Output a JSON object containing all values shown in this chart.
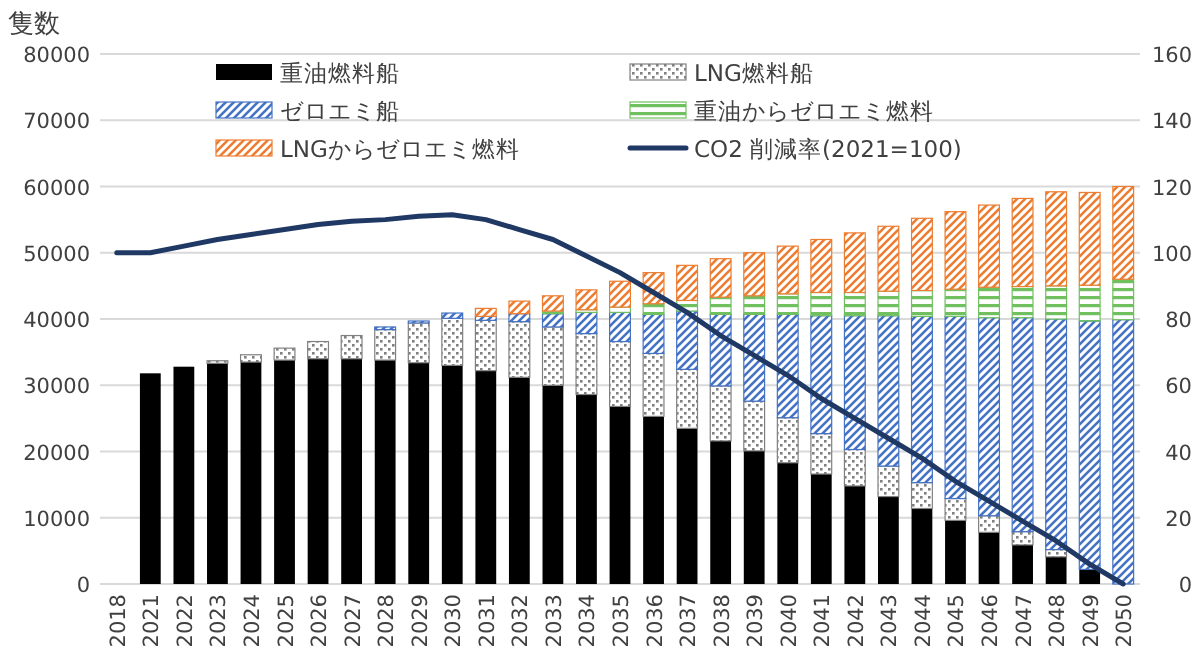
{
  "chart_data": {
    "type": "bar",
    "stacked": true,
    "ylabel": "隻数",
    "categories": [
      "2018",
      "2021",
      "2022",
      "2023",
      "2024",
      "2025",
      "2026",
      "2027",
      "2028",
      "2029",
      "2030",
      "2031",
      "2032",
      "2033",
      "2034",
      "2035",
      "2036",
      "2037",
      "2038",
      "2039",
      "2040",
      "2041",
      "2042",
      "2043",
      "2044",
      "2045",
      "2046",
      "2047",
      "2048",
      "2049",
      "2050"
    ],
    "series": [
      {
        "name": "重油燃料船",
        "color": "#000000",
        "values": [
          null,
          31800,
          32800,
          33300,
          33500,
          33800,
          34000,
          34000,
          33800,
          33400,
          33000,
          32200,
          31200,
          30000,
          28600,
          26800,
          25300,
          23500,
          21600,
          20100,
          18300,
          16600,
          14800,
          13200,
          11400,
          9600,
          7800,
          5900,
          4100,
          2200,
          0
        ]
      },
      {
        "name": "LNG燃料船",
        "color": "#808080",
        "values": [
          null,
          0,
          0,
          400,
          1100,
          1800,
          2600,
          3500,
          4600,
          6000,
          7100,
          7600,
          8400,
          8800,
          9200,
          9800,
          9500,
          8900,
          8300,
          7500,
          6800,
          6100,
          5500,
          4600,
          3900,
          3300,
          2500,
          2000,
          1100,
          null,
          0
        ]
      },
      {
        "name": "ゼロエミ船",
        "color": "#4472c4",
        "values": [
          null,
          0,
          0,
          0,
          0,
          0,
          0,
          0,
          400,
          300,
          800,
          600,
          1200,
          2000,
          3200,
          4400,
          5900,
          8800,
          10800,
          13100,
          15600,
          17800,
          20200,
          22700,
          25100,
          27500,
          29900,
          32300,
          34800,
          37500,
          39900
        ]
      },
      {
        "name": "重油からゼロエミ燃料",
        "color": "#70c060",
        "values": [
          null,
          0,
          0,
          0,
          0,
          0,
          0,
          0,
          0,
          0,
          0,
          null,
          null,
          400,
          400,
          800,
          1600,
          1600,
          2600,
          2800,
          3100,
          3500,
          3500,
          3700,
          3900,
          4100,
          4600,
          4700,
          5000,
          5400,
          6100
        ]
      },
      {
        "name": "LNGからゼロエミ燃料",
        "color": "#ed7d31",
        "values": [
          null,
          0,
          0,
          0,
          0,
          0,
          0,
          0,
          0,
          0,
          0,
          1200,
          1900,
          2300,
          3000,
          3900,
          4700,
          5300,
          5800,
          6500,
          7200,
          8000,
          9000,
          9800,
          10900,
          11700,
          12400,
          13300,
          14200,
          14000,
          14000
        ]
      },
      {
        "name": "CO2 削減率(2021=100)",
        "type": "line",
        "axis": "y2",
        "color": "#1f3864",
        "values": [
          100,
          100,
          102,
          104,
          105.5,
          107,
          108.5,
          109.5,
          110,
          111,
          111.5,
          110,
          107,
          104,
          99,
          94,
          88,
          82,
          75,
          69,
          63,
          56,
          50,
          44,
          38,
          31,
          25,
          19,
          13,
          6,
          0
        ]
      }
    ],
    "ylim": [
      0,
      80000
    ],
    "yticks": [
      0,
      10000,
      20000,
      30000,
      40000,
      50000,
      60000,
      70000,
      80000
    ],
    "y2lim": [
      0,
      160
    ],
    "y2ticks": [
      0,
      20,
      40,
      60,
      80,
      100,
      120,
      140,
      160
    ],
    "grid": "y",
    "legend": "top"
  }
}
